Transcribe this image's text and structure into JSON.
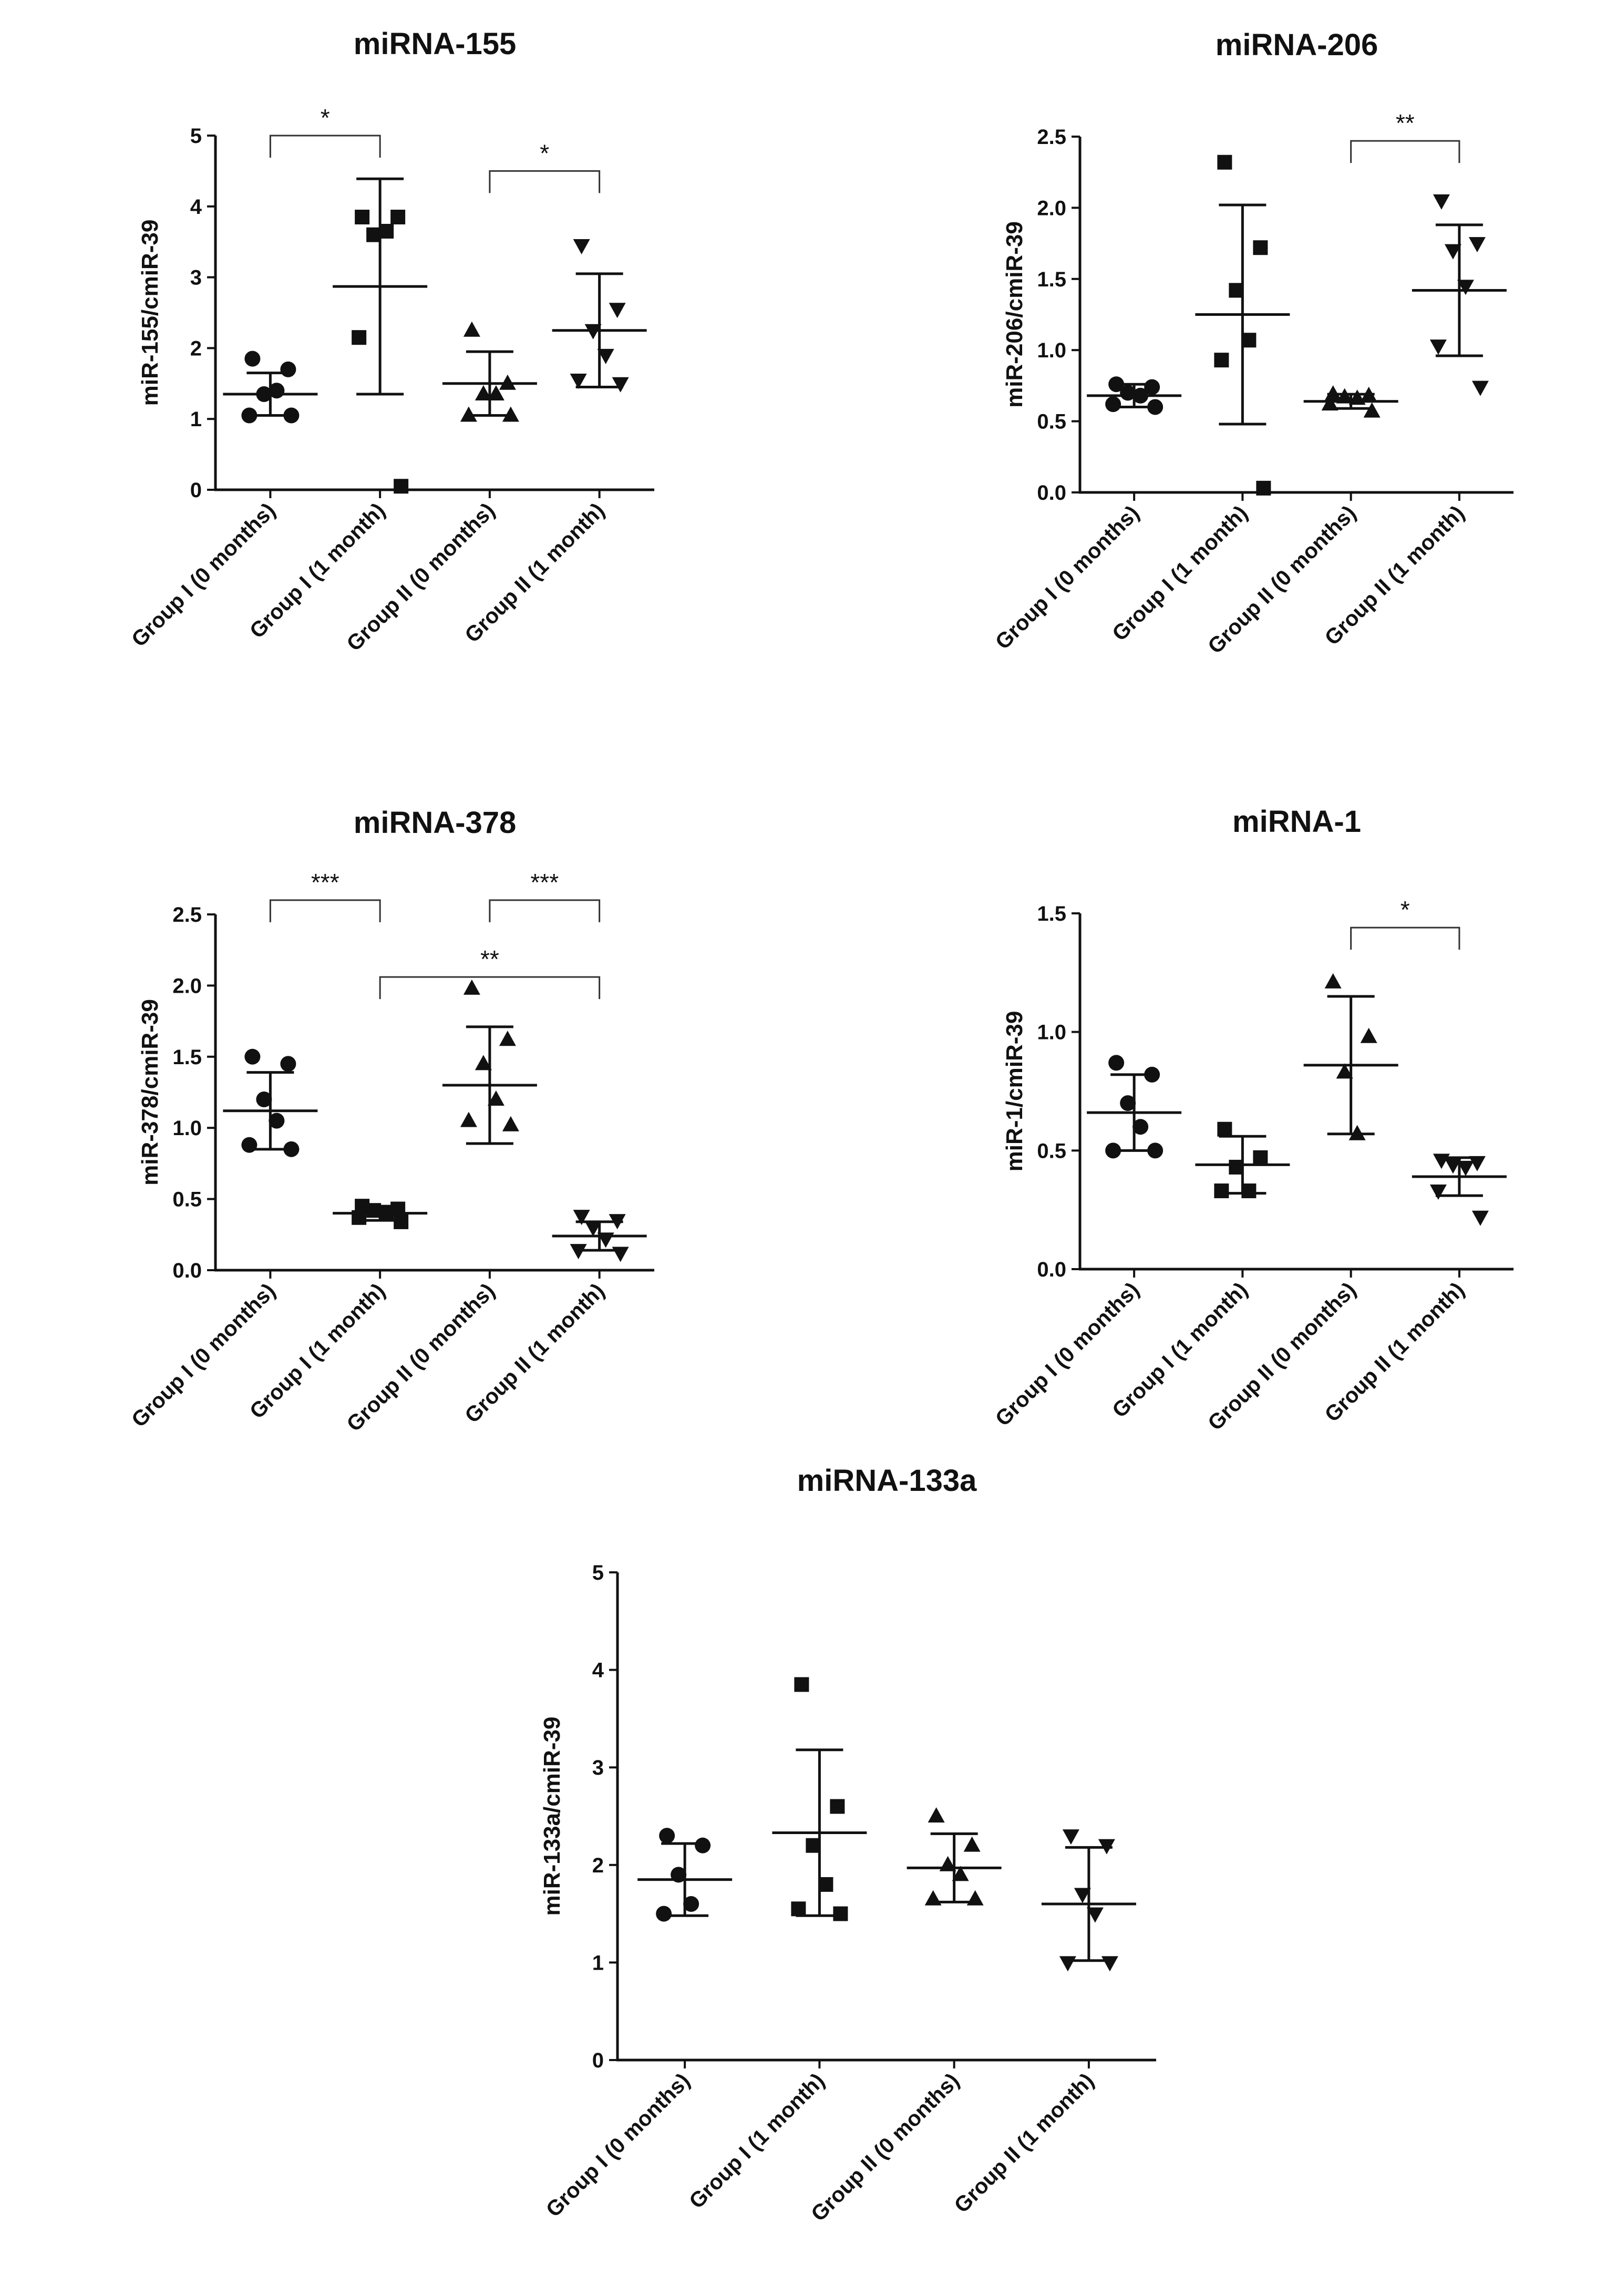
{
  "figure": {
    "description": "Five dot plots of serum miRNA levels"
  },
  "chart_data": [
    {
      "type": "scatter",
      "title": "miRNA-155",
      "xlabel": "",
      "ylabel": "miR-155/cmiR-39",
      "ylim": [
        0,
        5
      ],
      "yticks": [
        "0",
        "1",
        "2",
        "3",
        "4",
        "5"
      ],
      "categories": [
        "Group I (0 months)",
        "Group I (1 month)",
        "Group II (0 months)",
        "Group II (1 month)"
      ],
      "series": [
        {
          "name": "Group I (0 months)",
          "marker": "circle",
          "points": [
            1.85,
            1.7,
            1.35,
            1.4,
            1.05,
            1.05
          ],
          "mean": 1.35,
          "sd": 0.3
        },
        {
          "name": "Group I (1 month)",
          "marker": "square",
          "points": [
            3.85,
            3.85,
            3.6,
            3.65,
            2.15,
            0.05
          ],
          "mean": 2.87,
          "sd": 1.52
        },
        {
          "name": "Group II (0 months)",
          "marker": "triangle-up",
          "points": [
            2.25,
            1.5,
            1.35,
            1.35,
            1.05,
            1.05
          ],
          "mean": 1.5,
          "sd": 0.45
        },
        {
          "name": "Group II (1 month)",
          "marker": "triangle-down",
          "points": [
            3.45,
            2.55,
            2.25,
            1.9,
            1.55,
            1.5
          ],
          "mean": 2.25,
          "sd": 0.8
        }
      ],
      "significance": [
        {
          "from": 0,
          "to": 1,
          "label": "*",
          "y": 5.0
        },
        {
          "from": 2,
          "to": 3,
          "label": "*",
          "y": 4.5
        }
      ]
    },
    {
      "type": "scatter",
      "title": "miRNA-206",
      "xlabel": "",
      "ylabel": "miR-206/cmiR-39",
      "ylim": [
        0,
        2.5
      ],
      "yticks": [
        "0.0",
        "0.5",
        "1.0",
        "1.5",
        "2.0",
        "2.5"
      ],
      "categories": [
        "Group I (0 months)",
        "Group I (1 month)",
        "Group II (0 months)",
        "Group II (1 month)"
      ],
      "series": [
        {
          "name": "Group I (0 months)",
          "marker": "circle",
          "points": [
            0.76,
            0.74,
            0.7,
            0.68,
            0.62,
            0.6
          ],
          "mean": 0.68,
          "sd": 0.08
        },
        {
          "name": "Group I (1 month)",
          "marker": "square",
          "points": [
            2.32,
            1.72,
            1.42,
            1.07,
            0.93,
            0.03
          ],
          "mean": 1.25,
          "sd": 0.77
        },
        {
          "name": "Group II (0 months)",
          "marker": "triangle-up",
          "points": [
            0.69,
            0.68,
            0.67,
            0.66,
            0.62,
            0.57
          ],
          "mean": 0.64,
          "sd": 0.05
        },
        {
          "name": "Group II (1 month)",
          "marker": "triangle-down",
          "points": [
            2.05,
            1.75,
            1.7,
            1.45,
            1.03,
            0.74
          ],
          "mean": 1.42,
          "sd": 0.46
        }
      ],
      "significance": [
        {
          "from": 2,
          "to": 3,
          "label": "**",
          "y": 2.47
        }
      ]
    },
    {
      "type": "scatter",
      "title": "miRNA-378",
      "xlabel": "",
      "ylabel": "miR-378/cmiR-39",
      "ylim": [
        0,
        2.5
      ],
      "yticks": [
        "0.0",
        "0.5",
        "1.0",
        "1.5",
        "2.0",
        "2.5"
      ],
      "categories": [
        "Group I (0 months)",
        "Group I (1 month)",
        "Group II (0 months)",
        "Group II (1 month)"
      ],
      "series": [
        {
          "name": "Group I (0 months)",
          "marker": "circle",
          "points": [
            1.5,
            1.45,
            1.2,
            1.05,
            0.88,
            0.85
          ],
          "mean": 1.12,
          "sd": 0.27
        },
        {
          "name": "Group I (1 month)",
          "marker": "square",
          "points": [
            0.45,
            0.43,
            0.42,
            0.4,
            0.37,
            0.34
          ],
          "mean": 0.4,
          "sd": 0.05
        },
        {
          "name": "Group II (0 months)",
          "marker": "triangle-up",
          "points": [
            1.98,
            1.62,
            1.45,
            1.2,
            1.05,
            1.02
          ],
          "mean": 1.3,
          "sd": 0.41
        },
        {
          "name": "Group II (1 month)",
          "marker": "triangle-down",
          "points": [
            0.38,
            0.35,
            0.3,
            0.22,
            0.14,
            0.12
          ],
          "mean": 0.24,
          "sd": 0.1
        }
      ],
      "significance": [
        {
          "from": 0,
          "to": 1,
          "label": "***",
          "y": 2.6
        },
        {
          "from": 2,
          "to": 3,
          "label": "***",
          "y": 2.6
        },
        {
          "from": 1,
          "to": 3,
          "label": "**",
          "y": 2.06
        }
      ]
    },
    {
      "type": "scatter",
      "title": "miRNA-1",
      "xlabel": "",
      "ylabel": "miR-1/cmiR-39",
      "ylim": [
        0,
        1.5
      ],
      "yticks": [
        "0.0",
        "0.5",
        "1.0",
        "1.5"
      ],
      "categories": [
        "Group I (0 months)",
        "Group I (1 month)",
        "Group II (0 months)",
        "Group II (1 month)"
      ],
      "series": [
        {
          "name": "Group I (0 months)",
          "marker": "circle",
          "points": [
            0.87,
            0.82,
            0.7,
            0.6,
            0.5,
            0.5
          ],
          "mean": 0.66,
          "sd": 0.16
        },
        {
          "name": "Group I (1 month)",
          "marker": "square",
          "points": [
            0.59,
            0.47,
            0.43,
            0.33,
            0.33
          ],
          "mean": 0.44,
          "sd": 0.12
        },
        {
          "name": "Group II (0 months)",
          "marker": "triangle-up",
          "points": [
            1.21,
            0.98,
            0.83,
            0.57
          ],
          "mean": 0.86,
          "sd": 0.29
        },
        {
          "name": "Group II (1 month)",
          "marker": "triangle-down",
          "points": [
            0.46,
            0.45,
            0.44,
            0.43,
            0.33,
            0.22
          ],
          "mean": 0.39,
          "sd": 0.08
        }
      ],
      "significance": [
        {
          "from": 2,
          "to": 3,
          "label": "*",
          "y": 1.44
        }
      ]
    },
    {
      "type": "scatter",
      "title": "miRNA-133a",
      "xlabel": "",
      "ylabel": "miR-133a/cmiR-39",
      "ylim": [
        0,
        5
      ],
      "yticks": [
        "0",
        "1",
        "2",
        "3",
        "4",
        "5"
      ],
      "categories": [
        "Group I (0 months)",
        "Group I (1 month)",
        "Group II (0 months)",
        "Group II (1 month)"
      ],
      "series": [
        {
          "name": "Group I (0 months)",
          "marker": "circle",
          "points": [
            2.3,
            2.2,
            1.9,
            1.6,
            1.5
          ],
          "mean": 1.85,
          "sd": 0.37
        },
        {
          "name": "Group I (1 month)",
          "marker": "square",
          "points": [
            3.85,
            2.6,
            2.2,
            1.8,
            1.55,
            1.5
          ],
          "mean": 2.33,
          "sd": 0.85
        },
        {
          "name": "Group II (0 months)",
          "marker": "triangle-up",
          "points": [
            2.5,
            2.2,
            2.0,
            1.9,
            1.65,
            1.65
          ],
          "mean": 1.97,
          "sd": 0.35
        },
        {
          "name": "Group II (1 month)",
          "marker": "triangle-down",
          "points": [
            2.3,
            2.2,
            1.7,
            1.5,
            1.0,
            1.0
          ],
          "mean": 1.6,
          "sd": 0.58
        }
      ],
      "significance": []
    }
  ]
}
